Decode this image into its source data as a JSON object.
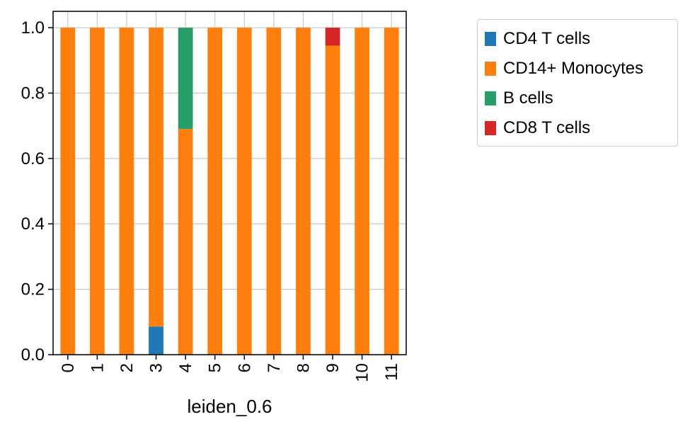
{
  "chart_data": {
    "type": "bar",
    "stacked": true,
    "xlabel": "leiden_0.6",
    "ylabel": "",
    "ylim": [
      0,
      1.05
    ],
    "yticks": [
      "0.0",
      "0.2",
      "0.4",
      "0.6",
      "0.8",
      "1.0"
    ],
    "grid": true,
    "legend_position": "outside-right",
    "categories": [
      "0",
      "1",
      "2",
      "3",
      "4",
      "5",
      "6",
      "7",
      "8",
      "9",
      "10",
      "11"
    ],
    "series": [
      {
        "name": "CD4 T cells",
        "color": "#1f77b4",
        "values": [
          0,
          0,
          0,
          0.086,
          0,
          0,
          0,
          0,
          0,
          0,
          0,
          0
        ]
      },
      {
        "name": "CD14+ Monocytes",
        "color": "#ff7f0e",
        "values": [
          1,
          1,
          1,
          0.914,
          0.69,
          1,
          1,
          1,
          1,
          0.945,
          1,
          1
        ]
      },
      {
        "name": "B cells",
        "color": "#279e68",
        "values": [
          0,
          0,
          0,
          0,
          0.31,
          0,
          0,
          0,
          0,
          0,
          0,
          0
        ]
      },
      {
        "name": "CD8 T cells",
        "color": "#d62728",
        "values": [
          0,
          0,
          0,
          0,
          0,
          0,
          0,
          0,
          0,
          0.055,
          0,
          0
        ]
      }
    ]
  }
}
